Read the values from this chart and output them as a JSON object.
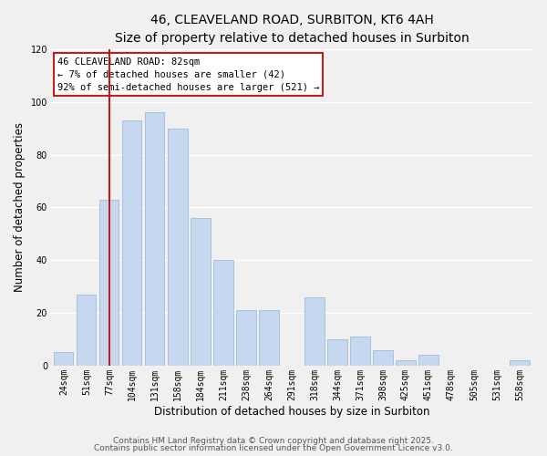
{
  "title": "46, CLEAVELAND ROAD, SURBITON, KT6 4AH",
  "subtitle": "Size of property relative to detached houses in Surbiton",
  "xlabel": "Distribution of detached houses by size in Surbiton",
  "ylabel": "Number of detached properties",
  "categories": [
    "24sqm",
    "51sqm",
    "77sqm",
    "104sqm",
    "131sqm",
    "158sqm",
    "184sqm",
    "211sqm",
    "238sqm",
    "264sqm",
    "291sqm",
    "318sqm",
    "344sqm",
    "371sqm",
    "398sqm",
    "425sqm",
    "451sqm",
    "478sqm",
    "505sqm",
    "531sqm",
    "558sqm"
  ],
  "values": [
    5,
    27,
    63,
    93,
    96,
    90,
    56,
    40,
    21,
    21,
    0,
    26,
    10,
    11,
    6,
    2,
    4,
    0,
    0,
    0,
    2
  ],
  "bar_color": "#c5d8f0",
  "bar_edge_color": "#a0bcd8",
  "vline_x": 2,
  "vline_color": "#cc0000",
  "annotation_title": "46 CLEAVELAND ROAD: 82sqm",
  "annotation_line1": "← 7% of detached houses are smaller (42)",
  "annotation_line2": "92% of semi-detached houses are larger (521) →",
  "annotation_box_color": "#ffffff",
  "annotation_box_edge": "#cc0000",
  "ylim": [
    0,
    120
  ],
  "footer1": "Contains HM Land Registry data © Crown copyright and database right 2025.",
  "footer2": "Contains public sector information licensed under the Open Government Licence v3.0.",
  "background_color": "#f0f0f0",
  "grid_color": "#ffffff",
  "title_fontsize": 10,
  "subtitle_fontsize": 9,
  "tick_fontsize": 7,
  "axis_label_fontsize": 8.5,
  "annotation_fontsize": 7.5,
  "footer_fontsize": 6.5
}
